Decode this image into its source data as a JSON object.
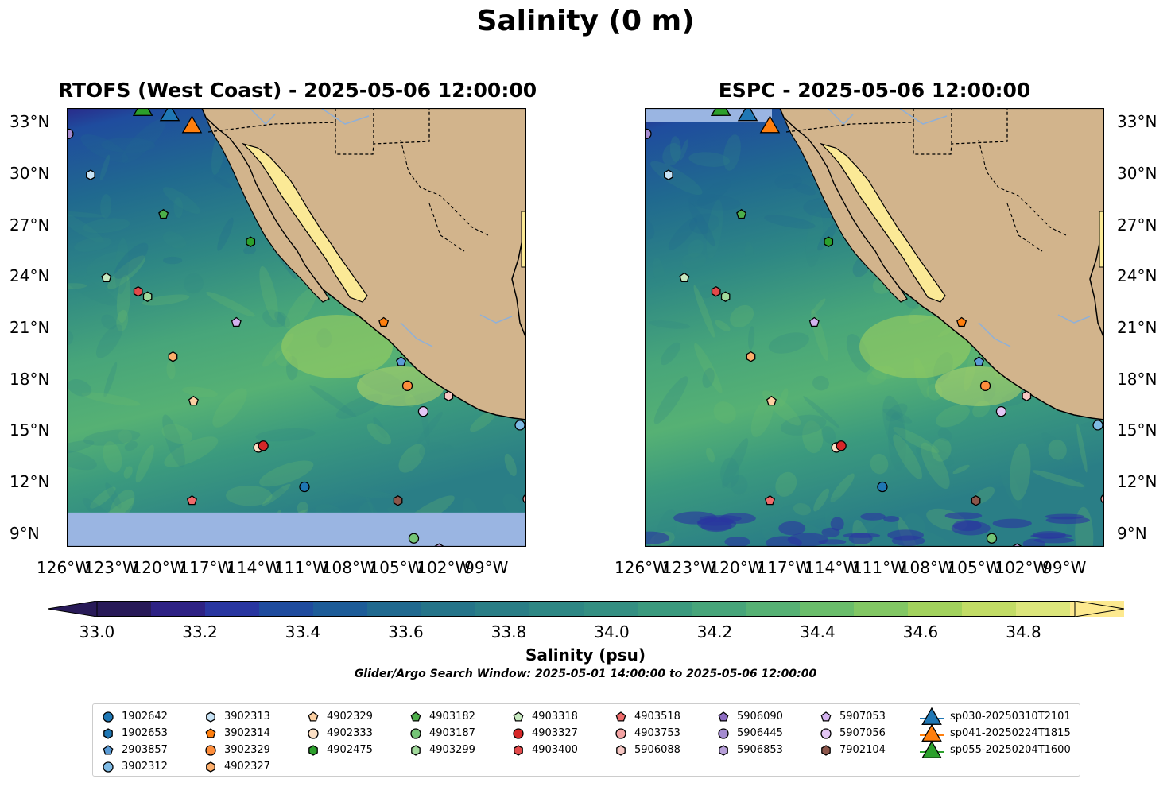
{
  "figure": {
    "title": "Salinity (0 m)",
    "panels": [
      {
        "title": "RTOFS (West Coast) - 2025-05-06 12:00:00"
      },
      {
        "title": "ESPC - 2025-05-06 12:00:00"
      }
    ],
    "lat_labels": [
      "33°N",
      "30°N",
      "27°N",
      "24°N",
      "21°N",
      "18°N",
      "15°N",
      "12°N",
      "9°N"
    ],
    "lon_labels": [
      "126°W",
      "123°W",
      "120°W",
      "117°W",
      "114°W",
      "111°W",
      "108°W",
      "105°W",
      "102°W",
      "99°W"
    ],
    "search_window": "Glider/Argo Search Window: 2025-05-01 14:00:00 to 2025-05-06 12:00:00"
  },
  "colorbar": {
    "label": "Salinity (psu)",
    "tick_labels": [
      "33.0",
      "33.2",
      "33.4",
      "33.6",
      "33.8",
      "34.0",
      "34.2",
      "34.4",
      "34.6",
      "34.8"
    ],
    "range": [
      32.9,
      34.9
    ],
    "colors": [
      "#281a58",
      "#2e2284",
      "#2936a0",
      "#1f4c9e",
      "#1d5c98",
      "#20698f",
      "#257489",
      "#2a7e86",
      "#2e8784",
      "#348f82",
      "#3b9a7e",
      "#47a57a",
      "#56b174",
      "#6abd6b",
      "#82c764",
      "#a2d25d",
      "#c2dc66",
      "#dce67c",
      "#fde98f"
    ],
    "over_color": "#fde98f",
    "under_color": "#281a58"
  },
  "colors": {
    "land": "#d2b48c",
    "gulf": "#fbe996",
    "missing": "#9ab5e2",
    "ocean_base": "#3f9f7f"
  },
  "chart_data": {
    "type": "map",
    "title": "Salinity (0 m)",
    "lon_range": [
      -126,
      -97
    ],
    "lat_range": [
      8.2,
      33.8
    ],
    "series": [
      {
        "name": "1902642",
        "marker": "circle",
        "color": "#1f77b4",
        "lon": -111.0,
        "lat": 11.7
      },
      {
        "name": "1902653",
        "marker": "hexagon",
        "color": "#1f77b4",
        "lon": null,
        "lat": null
      },
      {
        "name": "2903857",
        "marker": "pentagon",
        "color": "#5b9bd5",
        "lon": -104.9,
        "lat": 19.0
      },
      {
        "name": "3902312",
        "marker": "circle",
        "color": "#7ebae4",
        "lon": -97.4,
        "lat": 15.3
      },
      {
        "name": "3902313",
        "marker": "hexagon",
        "color": "#c6e2f5",
        "lon": -124.5,
        "lat": 29.9
      },
      {
        "name": "3902314",
        "marker": "pentagon",
        "color": "#ff7f0e",
        "lon": -106.0,
        "lat": 21.3
      },
      {
        "name": "3902329",
        "marker": "circle",
        "color": "#fd8d3c",
        "lon": -104.5,
        "lat": 17.6
      },
      {
        "name": "4902327",
        "marker": "hexagon",
        "color": "#fdae6b",
        "lon": -119.3,
        "lat": 19.3
      },
      {
        "name": "4902329",
        "marker": "pentagon",
        "color": "#fdd0a2",
        "lon": -118.0,
        "lat": 16.7
      },
      {
        "name": "4902333",
        "marker": "circle",
        "color": "#fde0c5",
        "lon": -113.9,
        "lat": 14.0
      },
      {
        "name": "4902475",
        "marker": "hexagon",
        "color": "#2ca02c",
        "lon": -114.4,
        "lat": 26.0
      },
      {
        "name": "4903182",
        "marker": "pentagon",
        "color": "#4daf4a",
        "lon": -119.9,
        "lat": 27.6
      },
      {
        "name": "4903187",
        "marker": "circle",
        "color": "#74c476",
        "lon": -104.1,
        "lat": 8.7
      },
      {
        "name": "4903299",
        "marker": "hexagon",
        "color": "#a1d99b",
        "lon": -120.9,
        "lat": 22.8
      },
      {
        "name": "4903318",
        "marker": "pentagon",
        "color": "#c7e9c0",
        "lon": -123.5,
        "lat": 23.9
      },
      {
        "name": "4903327",
        "marker": "circle",
        "color": "#d62728",
        "lon": -113.6,
        "lat": 14.1
      },
      {
        "name": "4903400",
        "marker": "hexagon",
        "color": "#e34a4b",
        "lon": -121.5,
        "lat": 23.1
      },
      {
        "name": "4903518",
        "marker": "pentagon",
        "color": "#ef6b6b",
        "lon": -118.1,
        "lat": 10.9
      },
      {
        "name": "4903753",
        "marker": "circle",
        "color": "#f4a3a3",
        "lon": -96.9,
        "lat": 11.0
      },
      {
        "name": "5906088",
        "marker": "hexagon",
        "color": "#f7c8c5",
        "lon": -101.9,
        "lat": 17.0
      },
      {
        "name": "5906090",
        "marker": "pentagon",
        "color": "#8c6bc1",
        "lon": null,
        "lat": null
      },
      {
        "name": "5906445",
        "marker": "circle",
        "color": "#a48bd0",
        "lon": -125.9,
        "lat": 32.3
      },
      {
        "name": "5906853",
        "marker": "hexagon",
        "color": "#b79fd9",
        "lon": -102.5,
        "lat": 8.1
      },
      {
        "name": "5907053",
        "marker": "pentagon",
        "color": "#d4b3f0",
        "lon": -115.3,
        "lat": 21.3
      },
      {
        "name": "5907056",
        "marker": "circle",
        "color": "#e3c6f5",
        "lon": -103.5,
        "lat": 16.1
      },
      {
        "name": "7902104",
        "marker": "hexagon",
        "color": "#8c564b",
        "lon": -105.1,
        "lat": 10.9
      },
      {
        "name": "sp030-20250310T2101",
        "marker": "triangle",
        "color": "#1f77b4",
        "lon": -119.5,
        "lat": 33.5
      },
      {
        "name": "sp041-20250224T1815",
        "marker": "triangle",
        "color": "#ff7f0e",
        "lon": -118.1,
        "lat": 32.8
      },
      {
        "name": "sp055-20250204T1600",
        "marker": "triangle",
        "color": "#2ca02c",
        "lon": -121.2,
        "lat": 33.8
      }
    ]
  }
}
